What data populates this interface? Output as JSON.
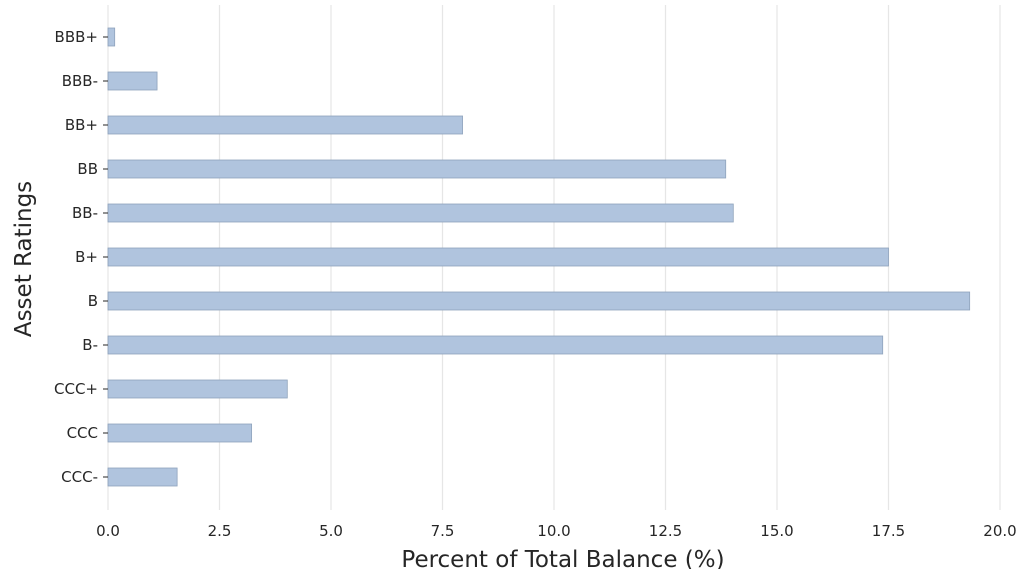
{
  "chart_data": {
    "type": "bar",
    "orientation": "horizontal",
    "xlabel": "Percent of Total Balance (%)",
    "ylabel": "Asset Ratings",
    "categories": [
      "BBB+",
      "BBB-",
      "BB+",
      "BB",
      "BB-",
      "B+",
      "B",
      "B-",
      "CCC+",
      "CCC",
      "CCC-"
    ],
    "values": [
      0.15,
      1.1,
      7.95,
      13.85,
      14.02,
      17.5,
      19.32,
      17.37,
      4.02,
      3.22,
      1.55
    ],
    "xlim": [
      0,
      20
    ],
    "xticks": [
      "0.0",
      "2.5",
      "5.0",
      "7.5",
      "10.0",
      "12.5",
      "15.0",
      "17.5",
      "20.0"
    ],
    "grid": "vertical",
    "bar_color": "#b0c4de",
    "bar_edge_color": "#8fa3bc"
  }
}
